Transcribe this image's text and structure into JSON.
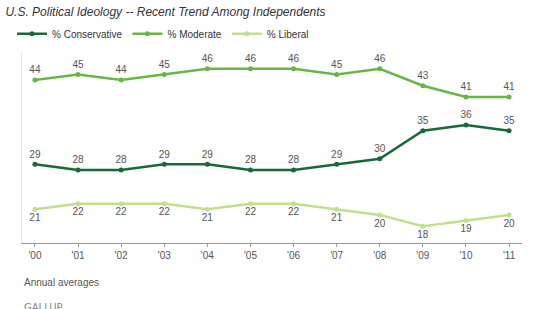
{
  "chart_data": {
    "type": "line",
    "title": "U.S. Political Ideology -- Recent Trend Among Independents",
    "categories": [
      "'00",
      "'01",
      "'02",
      "'03",
      "'04",
      "'05",
      "'06",
      "'07",
      "'08",
      "'09",
      "'10",
      "'11"
    ],
    "series": [
      {
        "name": "% Conservative",
        "color": "#17693a",
        "values": [
          29,
          28,
          28,
          29,
          29,
          28,
          28,
          29,
          30,
          35,
          36,
          35
        ]
      },
      {
        "name": "% Moderate",
        "color": "#6ab548",
        "values": [
          44,
          45,
          44,
          45,
          46,
          46,
          46,
          45,
          46,
          43,
          41,
          41
        ]
      },
      {
        "name": "% Liberal",
        "color": "#c2df8e",
        "values": [
          21,
          22,
          22,
          22,
          21,
          22,
          22,
          21,
          20,
          18,
          19,
          20
        ]
      }
    ],
    "ylim": [
      15,
      49
    ],
    "tick_labels": "x",
    "grid": false,
    "legend": "top-left",
    "data_labels": true,
    "marker": "circle",
    "annotations": [
      "Annual averages",
      "GALLUP"
    ]
  }
}
